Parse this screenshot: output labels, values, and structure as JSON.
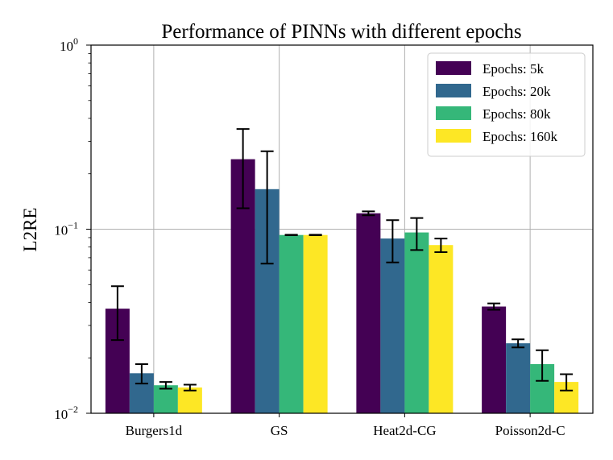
{
  "chart_data": {
    "type": "bar",
    "title": "Performance of PINNs with different epochs",
    "xlabel": "",
    "ylabel": "L2RE",
    "yscale": "log",
    "ylim": [
      0.01,
      1
    ],
    "y_ticks": [
      {
        "value": 0.01,
        "base": "10",
        "exp": "−2"
      },
      {
        "value": 0.1,
        "base": "10",
        "exp": "−1"
      },
      {
        "value": 1,
        "base": "10",
        "exp": "0"
      }
    ],
    "grid": true,
    "legend_position": "top-right",
    "categories": [
      "Burgers1d",
      "GS",
      "Heat2d-CG",
      "Poisson2d-C"
    ],
    "series": [
      {
        "name": "Epochs: 5k",
        "color": "#440154",
        "values": [
          0.037,
          0.24,
          0.122,
          0.038
        ],
        "errors": [
          0.012,
          0.11,
          0.003,
          0.0015
        ]
      },
      {
        "name": "Epochs: 20k",
        "color": "#31688e",
        "values": [
          0.0165,
          0.165,
          0.089,
          0.024
        ],
        "errors": [
          0.002,
          0.1,
          0.023,
          0.0012
        ]
      },
      {
        "name": "Epochs: 80k",
        "color": "#35b779",
        "values": [
          0.0142,
          0.093,
          0.096,
          0.0185
        ],
        "errors": [
          0.0006,
          0.0003,
          0.019,
          0.0035
        ]
      },
      {
        "name": "Epochs: 160k",
        "color": "#fde725",
        "values": [
          0.0138,
          0.093,
          0.082,
          0.0148
        ],
        "errors": [
          0.0005,
          0.0003,
          0.007,
          0.0015
        ]
      }
    ]
  }
}
